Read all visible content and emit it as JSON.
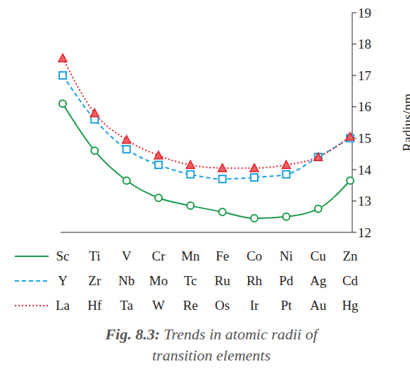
{
  "chart_data": {
    "type": "line",
    "caption_label": "Fig. 8.3:",
    "title": "Trends in atomic radii of transition elements",
    "y_label": "Radius/nm",
    "ylim": [
      12,
      19
    ],
    "yticks": [
      12,
      13,
      14,
      15,
      16,
      17,
      18,
      19
    ],
    "grid": false,
    "series": [
      {
        "categories": [
          "Sc",
          "Ti",
          "V",
          "Cr",
          "Mn",
          "Fe",
          "Co",
          "Ni",
          "Cu",
          "Zn"
        ],
        "color": "#1a9a4a",
        "line_style": "solid",
        "marker": "circle",
        "values": [
          16.1,
          14.6,
          13.65,
          13.1,
          12.85,
          12.65,
          12.45,
          12.5,
          12.75,
          13.65
        ]
      },
      {
        "categories": [
          "Y",
          "Zr",
          "Nb",
          "Mo",
          "Tc",
          "Ru",
          "Rh",
          "Pd",
          "Ag",
          "Cd"
        ],
        "color": "#1ba1e2",
        "line_style": "dashed",
        "marker": "square",
        "values": [
          17.0,
          15.6,
          14.65,
          14.15,
          13.85,
          13.7,
          13.75,
          13.85,
          14.4,
          15.0
        ]
      },
      {
        "categories": [
          "La",
          "Hf",
          "Ta",
          "W",
          "Re",
          "Os",
          "Ir",
          "Pt",
          "Au",
          "Hg"
        ],
        "color": "#e0202a",
        "line_style": "dotted",
        "marker": "triangle",
        "values": [
          17.55,
          15.8,
          14.95,
          14.45,
          14.15,
          14.05,
          14.05,
          14.15,
          14.4,
          15.05
        ]
      }
    ]
  }
}
